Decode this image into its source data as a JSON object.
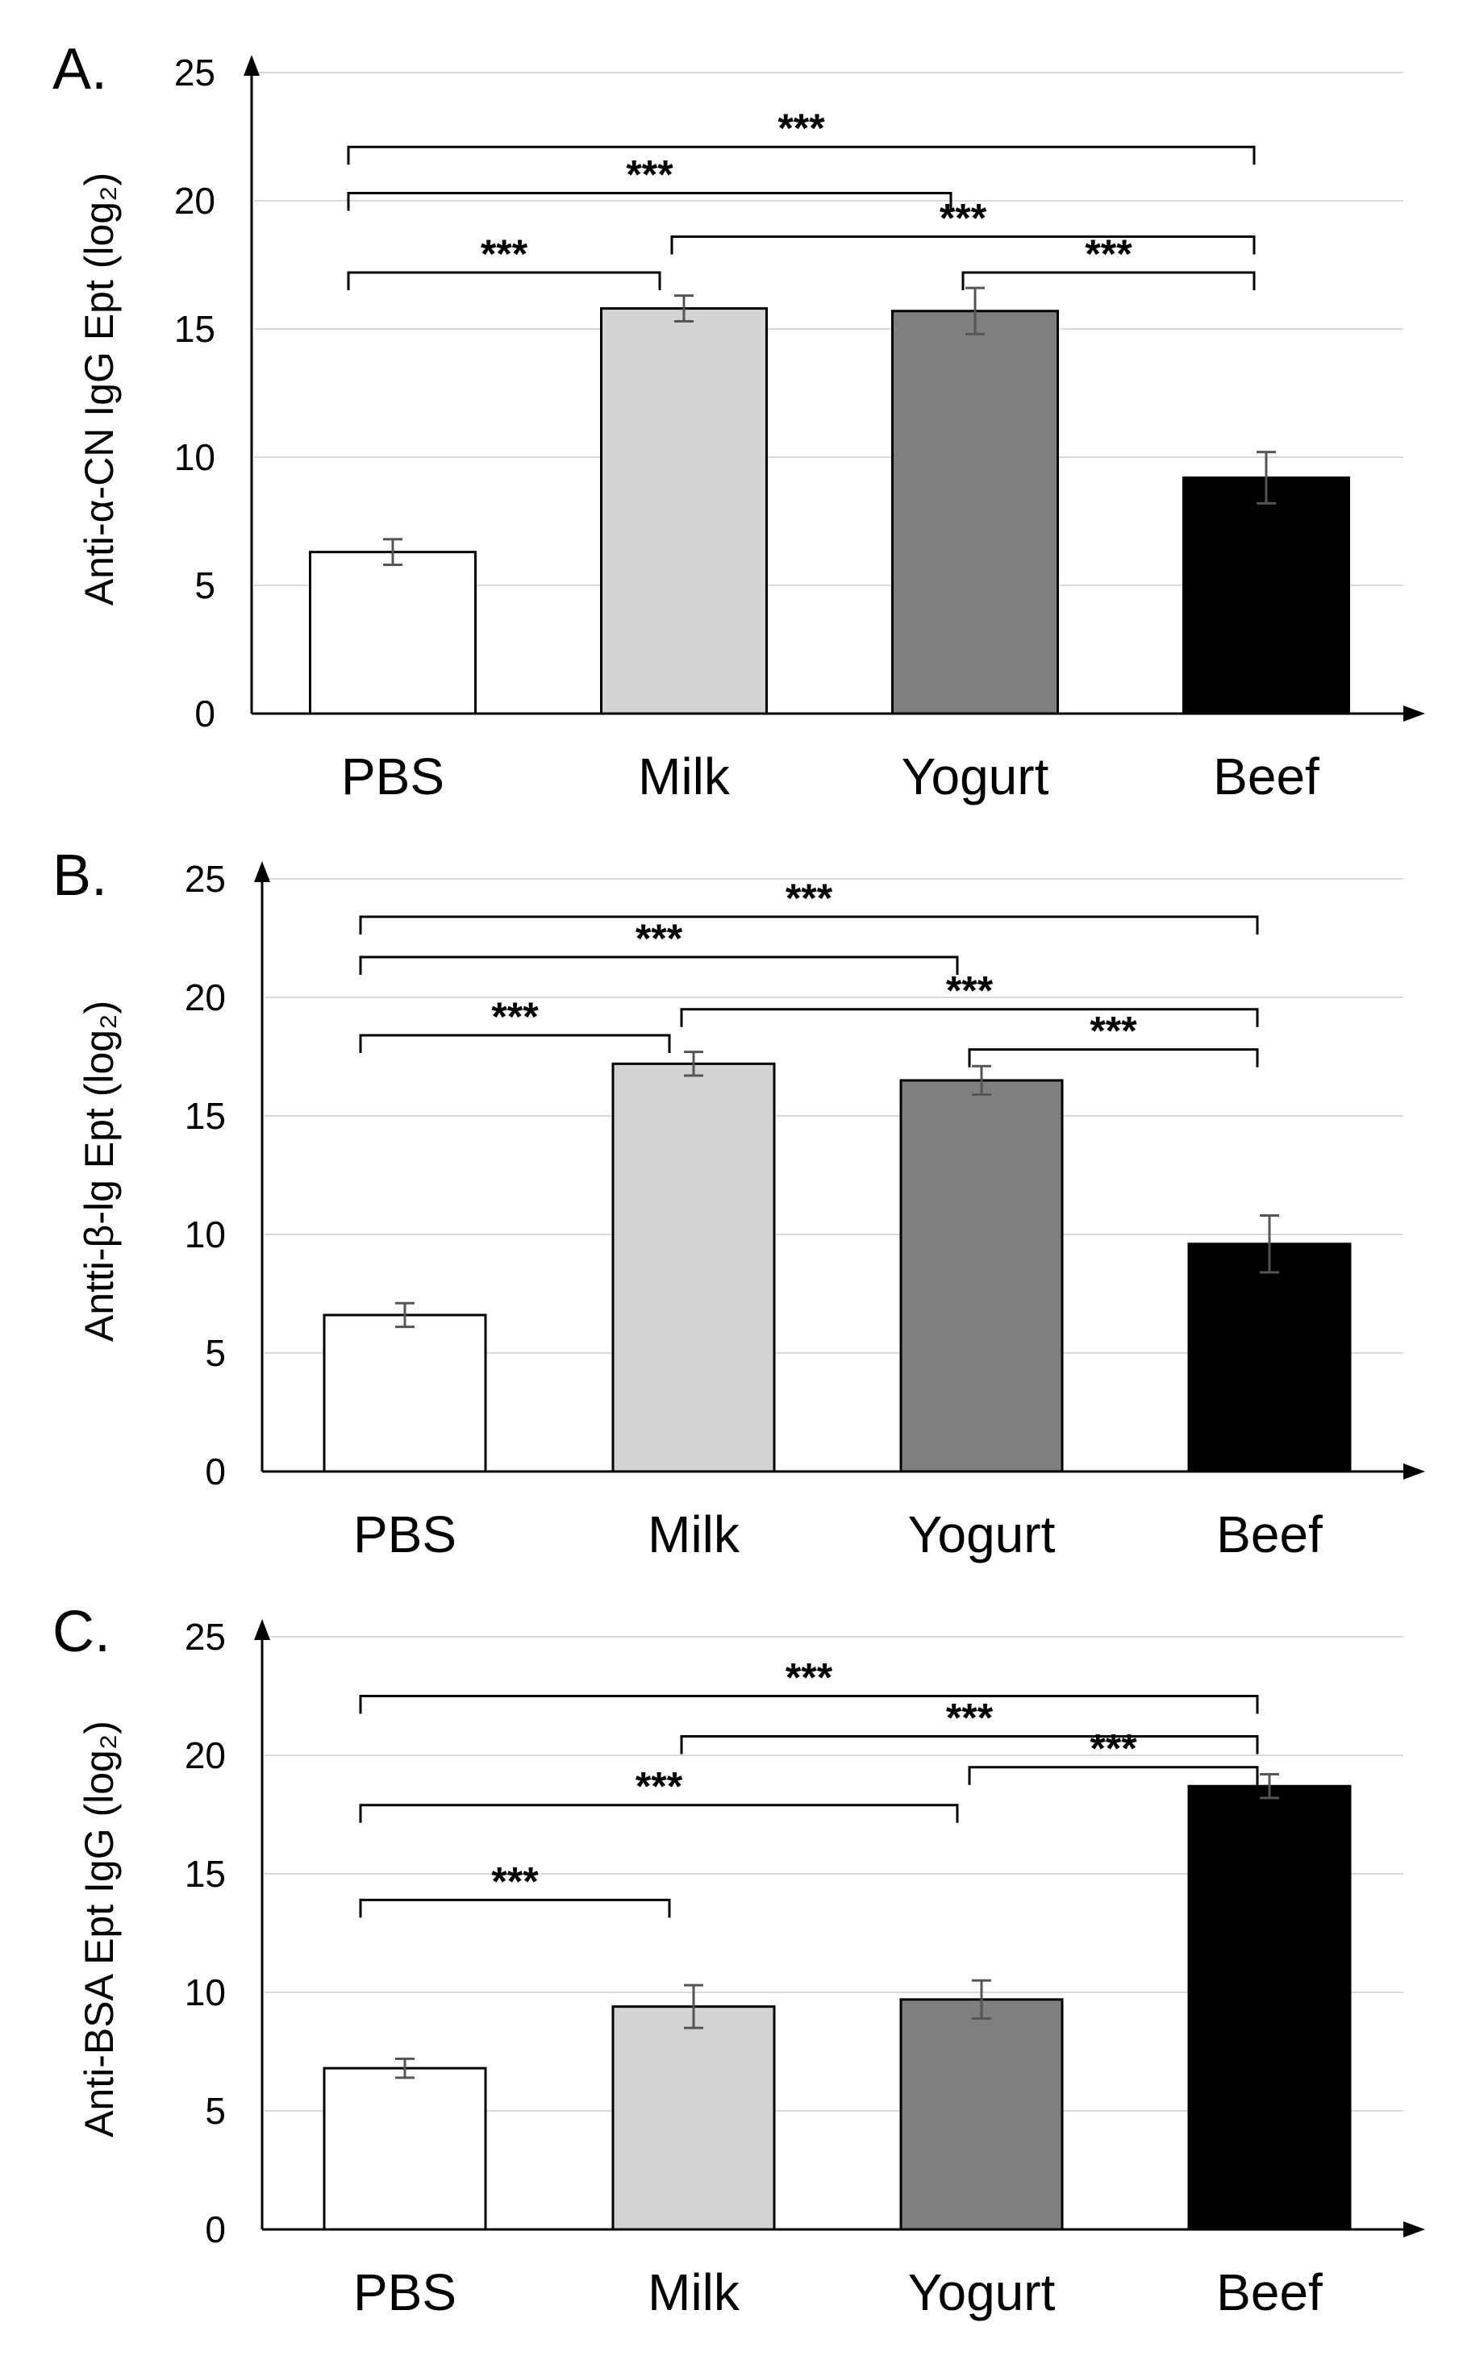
{
  "chart_data": [
    {
      "type": "bar",
      "panel_label": "A.",
      "ylabel": "Anti-α-CN IgG Ept (log₂)",
      "categories": [
        "PBS",
        "Milk",
        "Yogurt",
        "Beef"
      ],
      "values": [
        6.3,
        15.8,
        15.7,
        9.2
      ],
      "errors": [
        0.5,
        0.5,
        0.9,
        1.0
      ],
      "bar_colors": [
        "#ffffff",
        "#d3d3d3",
        "#7f7f7f",
        "#000000"
      ],
      "ylim": [
        0,
        25
      ],
      "yticks": [
        0,
        5,
        10,
        15,
        20,
        25
      ],
      "grid": true,
      "significance": [
        {
          "from": 0,
          "to": 3,
          "label": "***",
          "y": 22.1
        },
        {
          "from": 0,
          "to": 2,
          "label": "***",
          "y": 20.3
        },
        {
          "from": 1,
          "to": 3,
          "label": "***",
          "y": 18.6
        },
        {
          "from": 0,
          "to": 1,
          "label": "***",
          "y": 17.2
        },
        {
          "from": 2,
          "to": 3,
          "label": "***",
          "y": 17.2
        }
      ]
    },
    {
      "type": "bar",
      "panel_label": "B.",
      "ylabel": "Antti-β-lg  Ept (log₂)",
      "categories": [
        "PBS",
        "Milk",
        "Yogurt",
        "Beef"
      ],
      "values": [
        6.6,
        17.2,
        16.5,
        9.6
      ],
      "errors": [
        0.5,
        0.5,
        0.6,
        1.2
      ],
      "bar_colors": [
        "#ffffff",
        "#d3d3d3",
        "#7f7f7f",
        "#000000"
      ],
      "ylim": [
        0,
        25
      ],
      "yticks": [
        0,
        5,
        10,
        15,
        20,
        25
      ],
      "grid": true,
      "significance": [
        {
          "from": 0,
          "to": 3,
          "label": "***",
          "y": 23.4
        },
        {
          "from": 0,
          "to": 2,
          "label": "***",
          "y": 21.7
        },
        {
          "from": 1,
          "to": 3,
          "label": "***",
          "y": 19.5
        },
        {
          "from": 0,
          "to": 1,
          "label": "***",
          "y": 18.4
        },
        {
          "from": 2,
          "to": 3,
          "label": "***",
          "y": 17.8
        }
      ]
    },
    {
      "type": "bar",
      "panel_label": "C.",
      "ylabel": "Anti-BSA Ept IgG (log₂)",
      "categories": [
        "PBS",
        "Milk",
        "Yogurt",
        "Beef"
      ],
      "values": [
        6.8,
        9.4,
        9.7,
        18.7
      ],
      "errors": [
        0.4,
        0.9,
        0.8,
        0.5
      ],
      "bar_colors": [
        "#ffffff",
        "#d3d3d3",
        "#7f7f7f",
        "#000000"
      ],
      "ylim": [
        0,
        25
      ],
      "yticks": [
        0,
        5,
        10,
        15,
        20,
        25
      ],
      "grid": true,
      "significance": [
        {
          "from": 0,
          "to": 3,
          "label": "***",
          "y": 22.5
        },
        {
          "from": 1,
          "to": 3,
          "label": "***",
          "y": 20.8
        },
        {
          "from": 2,
          "to": 3,
          "label": "***",
          "y": 19.5
        },
        {
          "from": 0,
          "to": 2,
          "label": "***",
          "y": 17.9
        },
        {
          "from": 0,
          "to": 1,
          "label": "***",
          "y": 13.9
        }
      ]
    }
  ]
}
